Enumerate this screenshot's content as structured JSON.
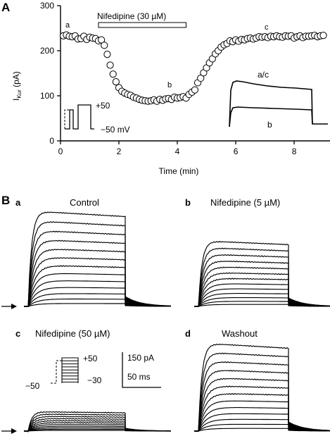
{
  "panel_A": {
    "label": "A",
    "drug_bar_label": "Nifedipine (30 µM)",
    "ylabel_main": "I",
    "ylabel_sub": "Kur",
    "ylabel_unit": " (pA)",
    "xlabel": "Time (min)",
    "point_labels": {
      "a": "a",
      "b": "b",
      "c": "c"
    },
    "protocol": {
      "top": "+50",
      "bottom": "−50 mV"
    },
    "inset_labels": {
      "ac": "a/c",
      "b": "b"
    }
  },
  "panel_B": {
    "label": "B",
    "subpanels": [
      {
        "letter": "a",
        "title": "Control"
      },
      {
        "letter": "b",
        "title": "Nifedipine (5 µM)"
      },
      {
        "letter": "c",
        "title": "Nifedipine (50 µM)"
      },
      {
        "letter": "d",
        "title": "Washout"
      }
    ],
    "protocol": {
      "top": "+50",
      "left": "−50",
      "bottom": "−30"
    },
    "scale": {
      "current": "150 pA",
      "time": "50 ms"
    }
  },
  "chart_data": [
    {
      "type": "scatter",
      "panel": "A",
      "xlabel": "Time (min)",
      "ylabel": "IKur (pA)",
      "xlim": [
        0,
        9.3
      ],
      "ylim": [
        0,
        300
      ],
      "xticks": [
        0,
        2,
        4,
        6,
        8
      ],
      "yticks": [
        0,
        100,
        200,
        300
      ],
      "drug_application": {
        "label": "Nifedipine (30 µM)",
        "start": 1.3,
        "end": 4.3
      },
      "x": [
        0.1,
        0.2,
        0.3,
        0.4,
        0.5,
        0.6,
        0.7,
        0.8,
        0.9,
        1.0,
        1.1,
        1.2,
        1.3,
        1.4,
        1.5,
        1.6,
        1.7,
        1.8,
        1.9,
        2.0,
        2.1,
        2.2,
        2.3,
        2.4,
        2.5,
        2.6,
        2.7,
        2.8,
        2.9,
        3.0,
        3.1,
        3.2,
        3.3,
        3.4,
        3.5,
        3.6,
        3.7,
        3.8,
        3.9,
        4.0,
        4.1,
        4.2,
        4.3,
        4.4,
        4.5,
        4.6,
        4.7,
        4.8,
        4.9,
        5.0,
        5.1,
        5.2,
        5.3,
        5.4,
        5.5,
        5.6,
        5.7,
        5.8,
        5.9,
        6.0,
        6.1,
        6.2,
        6.3,
        6.4,
        6.5,
        6.6,
        6.7,
        6.8,
        6.9,
        7.0,
        7.1,
        7.2,
        7.3,
        7.4,
        7.5,
        7.6,
        7.7,
        7.8,
        7.9,
        8.0,
        8.1,
        8.2,
        8.3,
        8.4,
        8.5,
        8.6,
        8.7,
        8.8,
        8.9,
        9.0
      ],
      "values": [
        233,
        235,
        232,
        231,
        233,
        226,
        227,
        232,
        225,
        230,
        228,
        227,
        222,
        224,
        212,
        192,
        168,
        148,
        131,
        118,
        110,
        106,
        103,
        101,
        97,
        95,
        92,
        90,
        89,
        88,
        89,
        91,
        88,
        92,
        90,
        93,
        94,
        92,
        97,
        95,
        96,
        98,
        95,
        103,
        108,
        113,
        129,
        139,
        151,
        162,
        173,
        182,
        193,
        200,
        208,
        213,
        216,
        222,
        220,
        224,
        221,
        225,
        224,
        227,
        228,
        226,
        228,
        231,
        230,
        231,
        229,
        232,
        231,
        233,
        231,
        230,
        233,
        232,
        233,
        228,
        231,
        233,
        229,
        232,
        232,
        233,
        234,
        231,
        233,
        234
      ],
      "point_labels": [
        {
          "text": "a",
          "x": 0.3
        },
        {
          "text": "b",
          "x": 4.0
        },
        {
          "text": "c",
          "x": 7.6
        }
      ]
    }
  ]
}
